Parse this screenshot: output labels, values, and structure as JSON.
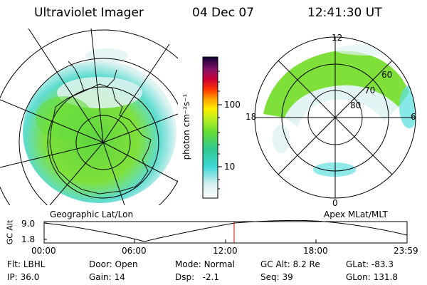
{
  "header": {
    "instrument": "Ultraviolet Imager",
    "date": "04 Dec 07",
    "time": "12:41:30 UT"
  },
  "colorbar": {
    "unit_label": "photon cm⁻²s⁻¹",
    "ticks": [
      {
        "value": 100,
        "label": "100"
      },
      {
        "value": 10,
        "label": "10"
      }
    ]
  },
  "left_map": {
    "label": "Geographic Lat/Lon"
  },
  "right_map": {
    "label": "Apex MLat/MLT",
    "mlt_labels": {
      "top": "12",
      "left": "18",
      "right": "6",
      "bottom": "0"
    },
    "mlat_labels": [
      "60",
      "70",
      "80"
    ]
  },
  "altitude_strip": {
    "ylabel": "GC Alt",
    "y_ticks": [
      "9.0",
      "1.8"
    ],
    "x_ticks": [
      "00:00",
      "06:00",
      "12:00",
      "18:00",
      "23:59"
    ],
    "current_time_hours": 12.69
  },
  "status": {
    "filter_label": "Flt:",
    "filter_value": "LBHL",
    "ip_label": "IP:",
    "ip_value": "36.0",
    "door_label": "Door:",
    "door_value": "Open",
    "gain_label": "Gain:",
    "gain_value": "14",
    "mode_label": "Mode:",
    "mode_value": "Normal",
    "dsp_label": "Dsp:",
    "dsp_value": "-2.1",
    "gcalt_label": "GC Alt:",
    "gcalt_value": "8.2 Re",
    "seq_label": "Seq:",
    "seq_value": "39",
    "glat_label": "GLat:",
    "glat_value": "-83.3",
    "glon_label": "GLon:",
    "glon_value": "131.8"
  },
  "colors": {
    "marker": "#cc0000",
    "green": "#7fe03a",
    "cyan": "#5fe0e0",
    "pale": "#dff3f3"
  }
}
